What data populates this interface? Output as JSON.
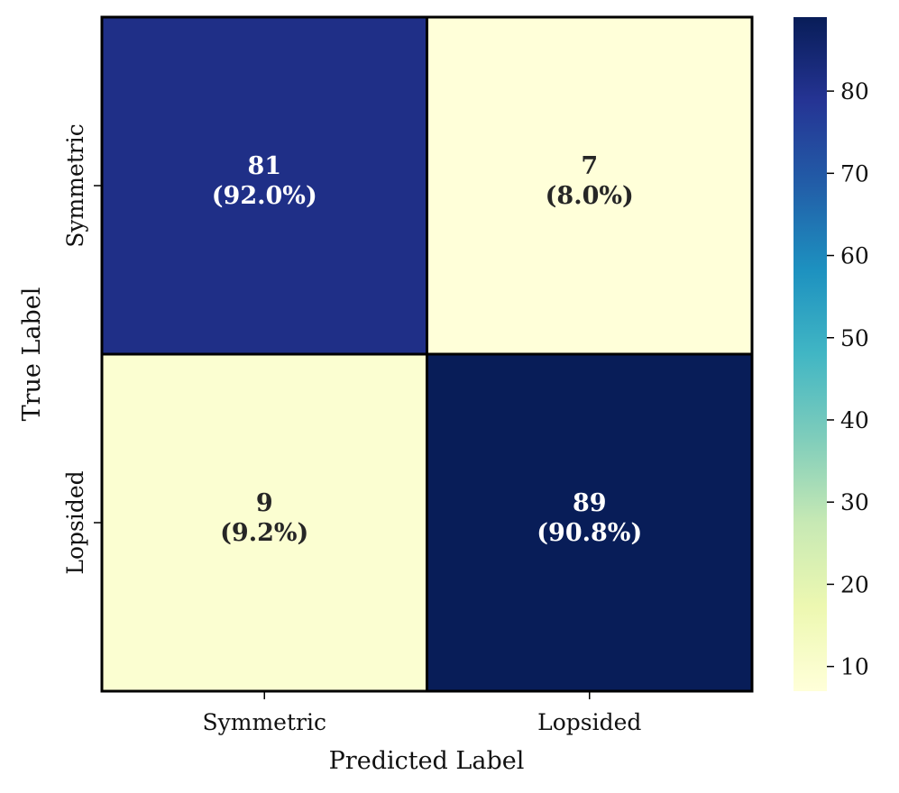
{
  "chart_data": {
    "type": "heatmap",
    "xlabel": "Predicted Label",
    "ylabel": "True Label",
    "x_categories": [
      "Symmetric",
      "Lopsided"
    ],
    "y_categories": [
      "Symmetric",
      "Lopsided"
    ],
    "matrix": [
      [
        81,
        7
      ],
      [
        9,
        89
      ]
    ],
    "percent_labels": [
      [
        "(92.0%)",
        "(8.0%)"
      ],
      [
        "(9.2%)",
        "(90.8%)"
      ]
    ],
    "colorbar": {
      "colormap": "YlGnBu",
      "min": 7,
      "max": 89,
      "ticks": [
        10,
        20,
        30,
        40,
        50,
        60,
        70,
        80
      ]
    },
    "grid": false
  }
}
